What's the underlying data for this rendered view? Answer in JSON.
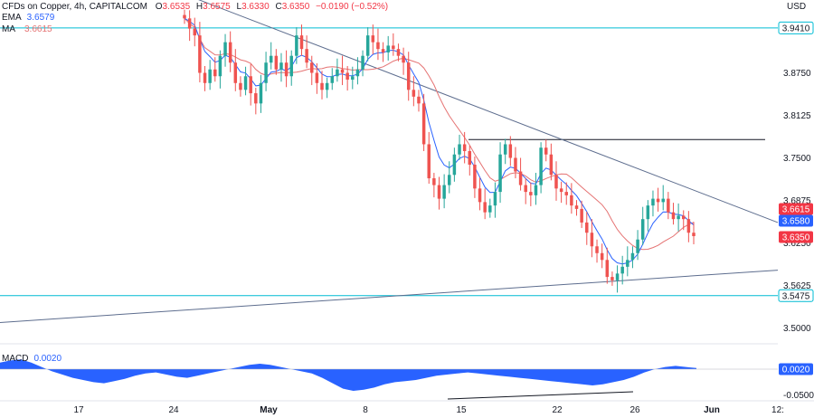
{
  "legend": {
    "title": "CFDs on Copper, 4h, CAPITALCOM",
    "ohlc": {
      "o_label": "O",
      "o": "3.6535",
      "h_label": "H",
      "h": "3.6575",
      "l_label": "L",
      "l": "3.6330",
      "c_label": "C",
      "c": "3.6350",
      "chg": "−0.0190 (−0.52%)"
    },
    "ema_label": "EMA",
    "ema_value": "3.6579",
    "ma_label": "MA",
    "ma_value": "3.6615"
  },
  "currency": "USD",
  "macd_label": "MACD",
  "macd_value": "0.0020",
  "colors": {
    "up": "#26a69a",
    "down": "#ef5350",
    "ema": "#2962ff",
    "ma": "#e57373",
    "level": "#00bcd4",
    "trend": "#5d6d8e",
    "hline": "#131722",
    "macd_fill": "#2962ff",
    "tag_red": "#f23645",
    "tag_blue": "#2962ff",
    "tag_level": "#00bcd4"
  },
  "chart_data": {
    "type": "candlestick",
    "symbol": "CFDs on Copper",
    "timeframe": "4h",
    "ylim": [
      3.47,
      3.97
    ],
    "price_ticks": [
      "3.8750",
      "3.8125",
      "3.7500",
      "3.6875",
      "3.6250",
      "3.5625",
      "3.5000"
    ],
    "x_ticks": [
      "17",
      "24",
      "May",
      "8",
      "15",
      "22",
      "26",
      "Jun",
      "12:"
    ],
    "x_ticks_major": [
      "May",
      "Jun"
    ],
    "price_tags": [
      {
        "label": "3.9410",
        "value": 3.941,
        "kind": "level"
      },
      {
        "label": "3.6615",
        "value": 3.6615,
        "kind": "ma"
      },
      {
        "label": "3.6580",
        "value": 3.658,
        "kind": "ema"
      },
      {
        "label": "3.6350",
        "value": 3.635,
        "kind": "close"
      },
      {
        "label": "3.5475",
        "value": 3.5475,
        "kind": "level"
      }
    ],
    "horizontal_levels": [
      3.941,
      3.5475
    ],
    "resistance_line": {
      "value": 3.777,
      "from": "May 16",
      "to": "May 30"
    },
    "trendlines": [
      {
        "name": "descending",
        "from": [
          "Apr 24",
          3.99
        ],
        "to": [
          "Jun 2",
          3.655
        ]
      },
      {
        "name": "ascending",
        "from": [
          "Apr 13",
          3.508
        ],
        "to": [
          "Jun 2",
          3.585
        ]
      }
    ],
    "candles_close": [
      3.955,
      3.94,
      3.93,
      3.875,
      3.86,
      3.88,
      3.87,
      3.9,
      3.92,
      3.89,
      3.86,
      3.85,
      3.87,
      3.845,
      3.83,
      3.86,
      3.89,
      3.9,
      3.88,
      3.89,
      3.87,
      3.9,
      3.93,
      3.91,
      3.89,
      3.875,
      3.86,
      3.85,
      3.86,
      3.87,
      3.88,
      3.875,
      3.865,
      3.87,
      3.88,
      3.9,
      3.93,
      3.92,
      3.91,
      3.905,
      3.915,
      3.91,
      3.9,
      3.89,
      3.85,
      3.84,
      3.83,
      3.77,
      3.72,
      3.71,
      3.69,
      3.71,
      3.725,
      3.755,
      3.77,
      3.76,
      3.74,
      3.705,
      3.685,
      3.67,
      3.68,
      3.7,
      3.755,
      3.77,
      3.75,
      3.73,
      3.71,
      3.7,
      3.695,
      3.71,
      3.765,
      3.755,
      3.725,
      3.705,
      3.7,
      3.695,
      3.68,
      3.675,
      3.655,
      3.64,
      3.62,
      3.61,
      3.6,
      3.575,
      3.57,
      3.58,
      3.59,
      3.6,
      3.61,
      3.63,
      3.66,
      3.68,
      3.69,
      3.685,
      3.69,
      3.67,
      3.66,
      3.665,
      3.66,
      3.64,
      3.635
    ],
    "ema_label": "EMA",
    "ema_last": 3.6579,
    "ma_label": "MA",
    "ma_last": 3.6615,
    "macd": {
      "label": "MACD",
      "last": 0.002,
      "ticks": [
        "0.0020",
        "-0.0500"
      ],
      "ylim": [
        -0.06,
        0.03
      ],
      "values": [
        0.012,
        0.016,
        0.018,
        0.012,
        0.004,
        -0.004,
        -0.01,
        -0.016,
        -0.02,
        -0.024,
        -0.026,
        -0.022,
        -0.018,
        -0.012,
        -0.008,
        -0.006,
        -0.01,
        -0.014,
        -0.016,
        -0.012,
        -0.008,
        -0.004,
        0.0,
        0.004,
        0.008,
        0.01,
        0.008,
        0.004,
        0.0,
        -0.004,
        -0.008,
        -0.016,
        -0.026,
        -0.036,
        -0.04,
        -0.038,
        -0.034,
        -0.028,
        -0.024,
        -0.022,
        -0.02,
        -0.016,
        -0.012,
        -0.01,
        -0.008,
        -0.006,
        -0.008,
        -0.01,
        -0.012,
        -0.014,
        -0.016,
        -0.018,
        -0.02,
        -0.022,
        -0.024,
        -0.026,
        -0.028,
        -0.03,
        -0.028,
        -0.024,
        -0.02,
        -0.014,
        -0.006,
        0.0,
        0.004,
        0.006,
        0.004,
        0.002
      ]
    }
  }
}
